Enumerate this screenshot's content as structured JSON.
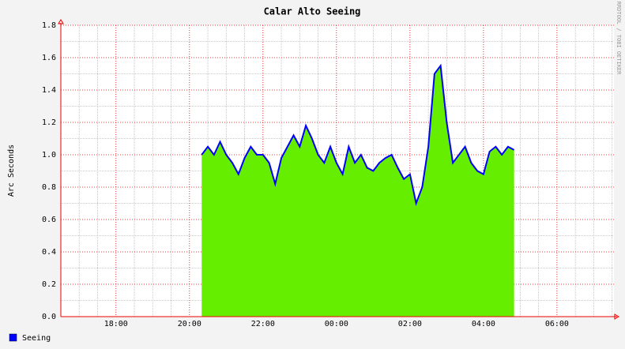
{
  "chart_data": {
    "type": "area",
    "title": "Calar Alto Seeing",
    "y_label": "Arc Seconds",
    "watermark": "RRDTOOL / TOBI OETIKER",
    "x": [
      20.333,
      20.5,
      20.667,
      20.833,
      21,
      21.167,
      21.333,
      21.5,
      21.667,
      21.833,
      22,
      22.167,
      22.333,
      22.5,
      22.667,
      22.833,
      23,
      23.167,
      23.333,
      23.5,
      23.667,
      23.833,
      24,
      24.167,
      24.333,
      24.5,
      24.667,
      24.833,
      25,
      25.167,
      25.333,
      25.5,
      25.667,
      25.833,
      26,
      26.167,
      26.333,
      26.5,
      26.667,
      26.833,
      27,
      27.167,
      27.333,
      27.5,
      27.667,
      27.833,
      28,
      28.167,
      28.333,
      28.5,
      28.667,
      28.833
    ],
    "series": [
      {
        "name": "Seeing",
        "color": "#0000ff",
        "area_color": "#66ee00",
        "values": [
          1.0,
          1.05,
          1.0,
          1.08,
          1.0,
          0.95,
          0.88,
          0.98,
          1.05,
          1.0,
          1.0,
          0.95,
          0.82,
          0.98,
          1.05,
          1.12,
          1.05,
          1.18,
          1.1,
          1.0,
          0.95,
          1.05,
          0.95,
          0.88,
          1.05,
          0.95,
          1.0,
          0.92,
          0.9,
          0.95,
          0.98,
          1.0,
          0.92,
          0.85,
          0.88,
          0.7,
          0.8,
          1.05,
          1.5,
          1.55,
          1.2,
          0.95,
          1.0,
          1.05,
          0.95,
          0.9,
          0.88,
          1.02,
          1.05,
          1.0,
          1.05,
          1.03
        ]
      }
    ],
    "xlim": [
      16.5,
      31.55
    ],
    "xticks": [
      {
        "value": 18,
        "label": "18:00"
      },
      {
        "value": 20,
        "label": "20:00"
      },
      {
        "value": 22,
        "label": "22:00"
      },
      {
        "value": 24,
        "label": "00:00"
      },
      {
        "value": 26,
        "label": "02:00"
      },
      {
        "value": 28,
        "label": "04:00"
      },
      {
        "value": 30,
        "label": "06:00"
      }
    ],
    "minor_xticks": [
      16.5,
      17,
      17.5,
      18.5,
      19,
      19.5,
      20.5,
      21,
      21.5,
      22.5,
      23,
      23.5,
      24.5,
      25,
      25.5,
      26.5,
      27,
      27.5,
      28.5,
      29,
      29.5,
      30.5,
      31,
      31.5
    ],
    "ylim": [
      0,
      1.8
    ],
    "yticks": [
      {
        "value": 0,
        "label": "0.0"
      },
      {
        "value": 0.2,
        "label": "0.2"
      },
      {
        "value": 0.4,
        "label": "0.4"
      },
      {
        "value": 0.6,
        "label": "0.6"
      },
      {
        "value": 0.8,
        "label": "0.8"
      },
      {
        "value": 1.0,
        "label": "1.0"
      },
      {
        "value": 1.2,
        "label": "1.2"
      },
      {
        "value": 1.4,
        "label": "1.4"
      },
      {
        "value": 1.6,
        "label": "1.6"
      },
      {
        "value": 1.8,
        "label": "1.8"
      }
    ],
    "minor_yticks": [
      0.1,
      0.3,
      0.5,
      0.7,
      0.9,
      1.1,
      1.3,
      1.5,
      1.7
    ],
    "grid": true,
    "legend": "bottom-left"
  }
}
